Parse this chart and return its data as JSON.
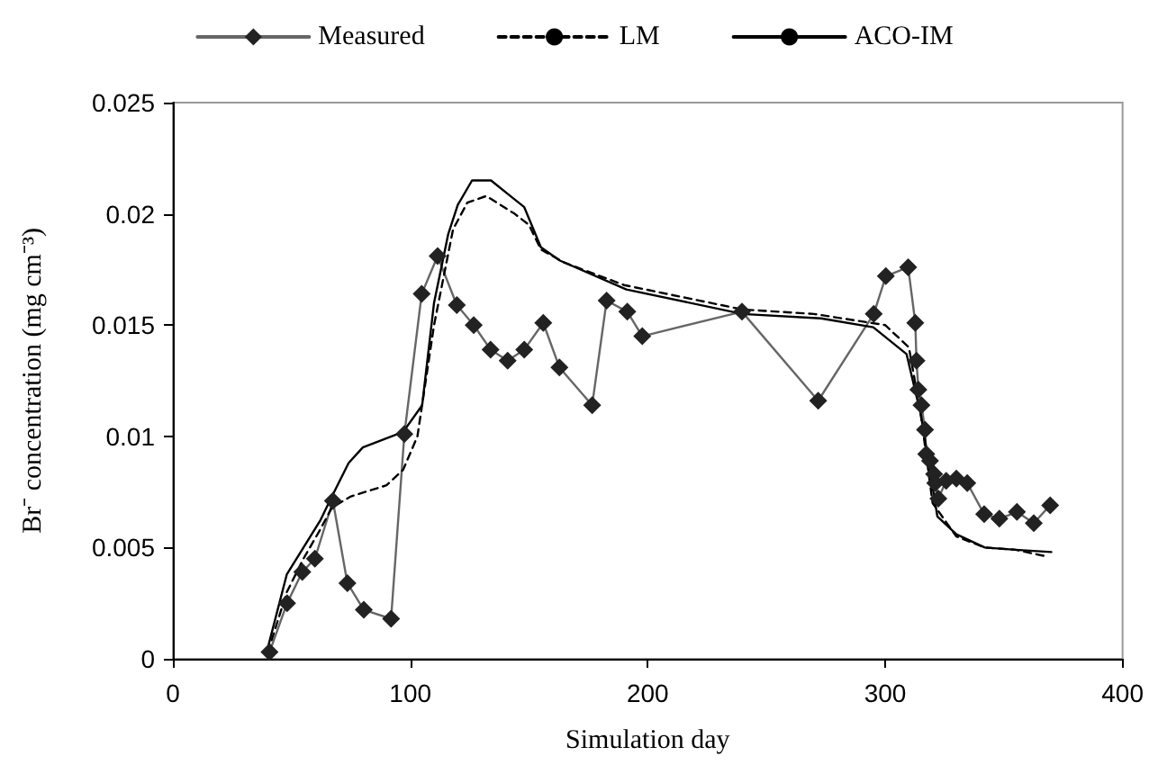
{
  "chart_data": {
    "type": "line",
    "xlabel": "Simulation day",
    "ylabel": "Br⁻ concentration (mg cm⁻³)",
    "xlim": [
      0,
      400
    ],
    "xticks": [
      0,
      100,
      200,
      300,
      400
    ],
    "ylim": [
      0,
      0.025
    ],
    "yticks": [
      0,
      0.005,
      0.01,
      0.015,
      0.02,
      0.025
    ],
    "grid": false,
    "legend": "top",
    "series": [
      {
        "name": "Measured",
        "color": "#222222",
        "marker": "diamond",
        "line_style": "solid",
        "x": [
          40.7,
          48.1,
          54.5,
          59.8,
          67.4,
          73.5,
          80.4,
          91.9,
          97.5,
          104.8,
          111.5,
          119.6,
          126.7,
          133.8,
          141,
          148,
          156,
          162.8,
          176.6,
          182.7,
          191.4,
          197.7,
          239.7,
          271.8,
          295.2,
          300.3,
          309.7,
          312.7,
          313.2,
          314,
          315.3,
          316.8,
          317.3,
          318.9,
          320.6,
          321.1,
          322.4,
          325.7,
          330,
          334.6,
          341.7,
          348.1,
          355.5,
          362.6,
          369.5
        ],
        "values": [
          0.0003,
          0.0025,
          0.0039,
          0.0045,
          0.0071,
          0.0034,
          0.0022,
          0.0018,
          0.0101,
          0.0164,
          0.0181,
          0.0159,
          0.015,
          0.0139,
          0.0134,
          0.0139,
          0.0151,
          0.0131,
          0.0114,
          0.0161,
          0.0156,
          0.0145,
          0.0156,
          0.0116,
          0.0155,
          0.0172,
          0.0176,
          0.0151,
          0.0134,
          0.0121,
          0.0114,
          0.0103,
          0.0092,
          0.0089,
          0.0083,
          0.0079,
          0.0072,
          0.008,
          0.0081,
          0.0079,
          0.0065,
          0.0063,
          0.0066,
          0.0061,
          0.0069
        ]
      },
      {
        "name": "LM",
        "color": "#000000",
        "marker": "none",
        "line_style": "dashed",
        "x": [
          40,
          48,
          55,
          62,
          67,
          75,
          90,
          97,
          103,
          110,
          118,
          124,
          132,
          144,
          150,
          155,
          165,
          190,
          240,
          270,
          300,
          310,
          315,
          320,
          330,
          342,
          355,
          368
        ],
        "values": [
          0.0003,
          0.003,
          0.0045,
          0.0058,
          0.0068,
          0.0073,
          0.0078,
          0.0085,
          0.01,
          0.015,
          0.0193,
          0.0205,
          0.0208,
          0.02,
          0.0195,
          0.0184,
          0.0178,
          0.0168,
          0.0157,
          0.0155,
          0.015,
          0.014,
          0.011,
          0.007,
          0.0055,
          0.005,
          0.0049,
          0.0046
        ]
      },
      {
        "name": "ACO-IM",
        "color": "#000000",
        "marker": "none",
        "line_style": "solid",
        "x": [
          40,
          48,
          55,
          62,
          67,
          74,
          80,
          97,
          105,
          110,
          116,
          120,
          126,
          134,
          141,
          148,
          155,
          163,
          191,
          240,
          273,
          295,
          309,
          315,
          322,
          330,
          342,
          355,
          370
        ],
        "values": [
          0.0005,
          0.0038,
          0.005,
          0.0062,
          0.0073,
          0.0088,
          0.0095,
          0.0102,
          0.0114,
          0.016,
          0.0191,
          0.0204,
          0.0215,
          0.0215,
          0.0209,
          0.0203,
          0.0185,
          0.0179,
          0.0166,
          0.0155,
          0.0153,
          0.0149,
          0.0137,
          0.011,
          0.0064,
          0.0056,
          0.005,
          0.0049,
          0.0048
        ]
      }
    ]
  }
}
